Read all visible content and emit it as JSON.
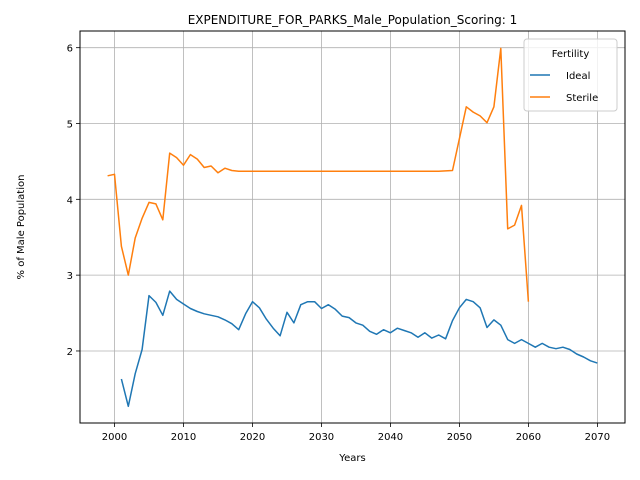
{
  "chart_data": {
    "type": "line",
    "title": "EXPENDITURE_FOR_PARKS_Male_Population_Scoring: 1",
    "xlabel": "Years",
    "ylabel": "% of Male Population",
    "xlim": [
      1995,
      2074
    ],
    "ylim": [
      1.05,
      6.22
    ],
    "xticks": [
      2000,
      2010,
      2020,
      2030,
      2040,
      2050,
      2060,
      2070
    ],
    "yticks": [
      2,
      3,
      4,
      5,
      6
    ],
    "grid": true,
    "legend": {
      "title": "Fertility",
      "position": "top-right"
    },
    "series": [
      {
        "name": "Ideal",
        "color": "#1f77b4",
        "x": [
          2001,
          2002,
          2003,
          2004,
          2005,
          2006,
          2007,
          2008,
          2009,
          2010,
          2011,
          2012,
          2013,
          2014,
          2015,
          2016,
          2017,
          2018,
          2019,
          2020,
          2021,
          2022,
          2023,
          2024,
          2025,
          2026,
          2027,
          2028,
          2029,
          2030,
          2031,
          2032,
          2033,
          2034,
          2035,
          2036,
          2037,
          2038,
          2039,
          2040,
          2041,
          2042,
          2043,
          2044,
          2045,
          2046,
          2047,
          2048,
          2049,
          2050,
          2051,
          2052,
          2053,
          2054,
          2055,
          2056,
          2057,
          2058,
          2059,
          2060,
          2061,
          2062,
          2063,
          2064,
          2065,
          2066,
          2067,
          2068,
          2069,
          2070
        ],
        "values": [
          1.63,
          1.27,
          1.7,
          2.02,
          2.73,
          2.64,
          2.47,
          2.79,
          2.68,
          2.62,
          2.56,
          2.52,
          2.49,
          2.47,
          2.45,
          2.41,
          2.36,
          2.28,
          2.49,
          2.65,
          2.57,
          2.42,
          2.3,
          2.2,
          2.51,
          2.37,
          2.61,
          2.65,
          2.65,
          2.56,
          2.61,
          2.55,
          2.46,
          2.44,
          2.37,
          2.34,
          2.26,
          2.22,
          2.28,
          2.24,
          2.3,
          2.27,
          2.24,
          2.18,
          2.24,
          2.17,
          2.21,
          2.16,
          2.4,
          2.57,
          2.68,
          2.65,
          2.57,
          2.31,
          2.41,
          2.34,
          2.15,
          2.1,
          2.15,
          2.1,
          2.05,
          2.1,
          2.05,
          2.03,
          2.05,
          2.02,
          1.96,
          1.92,
          1.87,
          1.84
        ]
      },
      {
        "name": "Sterile",
        "color": "#ff7f0e",
        "x": [
          1999,
          2000,
          2001,
          2002,
          2003,
          2004,
          2005,
          2006,
          2007,
          2008,
          2009,
          2010,
          2011,
          2012,
          2013,
          2014,
          2015,
          2016,
          2017,
          2018,
          2019,
          2020,
          2025,
          2030,
          2035,
          2040,
          2045,
          2047,
          2049,
          2050,
          2051,
          2052,
          2053,
          2054,
          2055,
          2056,
          2057,
          2058,
          2059,
          2060
        ],
        "values": [
          4.31,
          4.33,
          3.38,
          3.0,
          3.49,
          3.75,
          3.96,
          3.94,
          3.73,
          4.61,
          4.55,
          4.45,
          4.59,
          4.53,
          4.42,
          4.44,
          4.35,
          4.41,
          4.38,
          4.37,
          4.37,
          4.37,
          4.37,
          4.37,
          4.37,
          4.37,
          4.37,
          4.37,
          4.38,
          4.8,
          5.22,
          5.15,
          5.1,
          5.01,
          5.22,
          5.99,
          3.61,
          3.66,
          3.92,
          2.65
        ]
      }
    ]
  }
}
